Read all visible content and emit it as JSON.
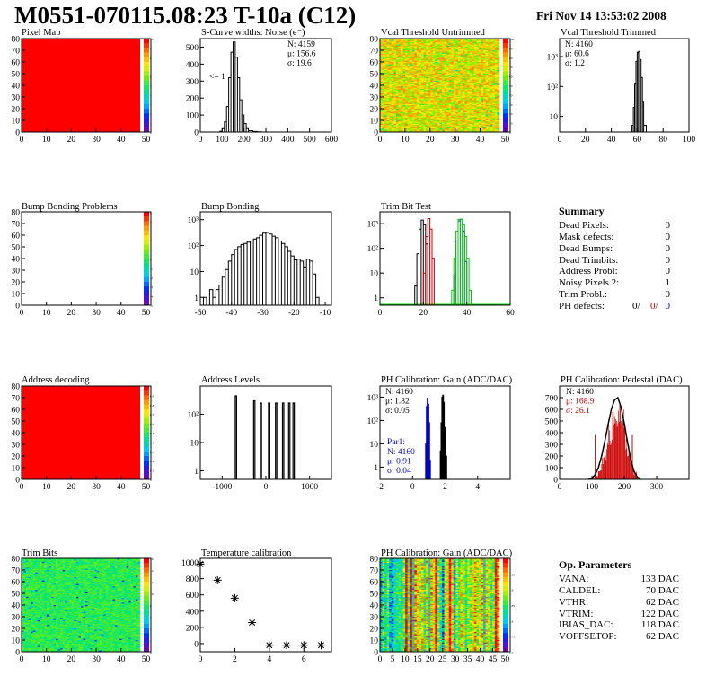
{
  "header": {
    "title": "M0551-070115.08:23 T-10a (C12)",
    "datetime": "Fri Nov 14 13:53:02 2008"
  },
  "colors": {
    "curve_black": "#000000",
    "curve_red": "#cc0000",
    "curve_green": "#00cc00",
    "curve_blue": "#0000cc",
    "heat_red": "#ff0000"
  },
  "chart_data": [
    {
      "id": "pixel-map",
      "type": "heatmap",
      "title": "Pixel Map",
      "xlim": [
        0,
        52
      ],
      "ylim": [
        0,
        80
      ],
      "xticks": [
        "0",
        "10",
        "20",
        "30",
        "40",
        "50"
      ],
      "yticks": [
        "0",
        "10",
        "20",
        "30",
        "40",
        "50",
        "60",
        "70",
        "80"
      ],
      "fill": "uniform",
      "value": 10,
      "zticks": [
        "0",
        "1",
        "2",
        "3",
        "4",
        "5",
        "6",
        "7",
        "8",
        "9",
        "10"
      ]
    },
    {
      "id": "scurve-widths",
      "type": "line",
      "title": "S-Curve widths: Noise (e⁻)",
      "xlim": [
        0,
        600
      ],
      "ylim": [
        0,
        550
      ],
      "log_y": false,
      "xticks": [
        "0",
        "100",
        "200",
        "300",
        "400",
        "500",
        "600"
      ],
      "yticks": [
        "0",
        "100",
        "200",
        "300",
        "400",
        "500"
      ],
      "stats": [
        "N: 4159",
        "μ: 156.6",
        "σ: 19.6"
      ],
      "annotation": "<= 1",
      "series": [
        {
          "color": "black",
          "x": [
            60,
            80,
            90,
            100,
            110,
            120,
            130,
            140,
            150,
            160,
            170,
            180,
            190,
            200,
            210,
            220,
            240,
            260,
            280,
            300
          ],
          "y": [
            0,
            0,
            5,
            20,
            60,
            150,
            320,
            470,
            530,
            440,
            320,
            190,
            100,
            50,
            20,
            8,
            3,
            1,
            0,
            0
          ]
        }
      ]
    },
    {
      "id": "vcal-untrimmed",
      "type": "heatmap",
      "title": "Vcal Threshold Untrimmed",
      "xlim": [
        0,
        52
      ],
      "ylim": [
        0,
        80
      ],
      "xticks": [
        "0",
        "10",
        "20",
        "30",
        "40",
        "50"
      ],
      "yticks": [
        "0",
        "10",
        "20",
        "30",
        "40",
        "50",
        "60",
        "70",
        "80"
      ],
      "fill": "noise",
      "value_range": [
        50,
        80
      ],
      "value_mean": 70,
      "zticks": [
        "0",
        "10",
        "20",
        "30",
        "40",
        "50",
        "60",
        "70",
        "80",
        "90",
        "100"
      ]
    },
    {
      "id": "vcal-trimmed",
      "type": "line",
      "title": "Vcal Threshold Trimmed",
      "xlim": [
        0,
        100
      ],
      "ylim": [
        3,
        4000
      ],
      "log_y": true,
      "xticks": [
        "0",
        "20",
        "40",
        "60",
        "80",
        "100"
      ],
      "yticks": [
        "10",
        "10²",
        "10³"
      ],
      "stats": [
        "N: 4160",
        "μ: 60.6",
        "σ:  1.2"
      ],
      "series": [
        {
          "color": "black",
          "x": [
            54,
            56,
            57,
            58,
            59,
            60,
            61,
            62,
            63,
            64,
            65,
            67
          ],
          "y": [
            3,
            5,
            20,
            120,
            700,
            1400,
            1500,
            800,
            200,
            30,
            5,
            3
          ]
        }
      ]
    },
    {
      "id": "bump-problems",
      "type": "heatmap",
      "title": "Bump Bonding Problems",
      "xlim": [
        0,
        52
      ],
      "ylim": [
        0,
        80
      ],
      "xticks": [
        "0",
        "10",
        "20",
        "30",
        "40",
        "50"
      ],
      "yticks": [
        "0",
        "10",
        "20",
        "30",
        "40",
        "50",
        "60",
        "70",
        "80"
      ],
      "fill": "empty",
      "zticks": [
        "-5",
        "-4",
        "-3",
        "-2",
        "-1",
        "0",
        "1",
        "2",
        "3",
        "4",
        "5"
      ]
    },
    {
      "id": "bump-bonding",
      "type": "line",
      "title": "Bump Bonding",
      "xlim": [
        -50,
        -8
      ],
      "ylim": [
        0.5,
        2000
      ],
      "log_y": true,
      "xticks": [
        "-50",
        "-40",
        "-30",
        "-20",
        "-10"
      ],
      "yticks": [
        "1",
        "10",
        "10²",
        "10³"
      ],
      "series": [
        {
          "color": "black",
          "x": [
            -49,
            -48,
            -47,
            -46,
            -45,
            -44,
            -43,
            -42,
            -41,
            -40,
            -39,
            -38,
            -37,
            -36,
            -35,
            -34,
            -33,
            -32,
            -31,
            -30,
            -29,
            -28,
            -27,
            -26,
            -25,
            -24,
            -23,
            -22,
            -21,
            -20,
            -19,
            -18,
            -17,
            -16,
            -15,
            -14,
            -13,
            -12
          ],
          "y": [
            1,
            0.5,
            2,
            1,
            2,
            3,
            6,
            12,
            25,
            45,
            70,
            90,
            110,
            120,
            135,
            150,
            180,
            200,
            250,
            300,
            320,
            280,
            230,
            200,
            150,
            120,
            90,
            60,
            40,
            28,
            30,
            25,
            15,
            30,
            25,
            8,
            1,
            0.5
          ]
        }
      ]
    },
    {
      "id": "trim-bit-test",
      "type": "line",
      "title": "Trim Bit Test",
      "xlim": [
        0,
        60
      ],
      "ylim": [
        0.5,
        3000
      ],
      "log_y": true,
      "xticks": [
        "0",
        "20",
        "40",
        "60"
      ],
      "yticks": [
        "1",
        "10",
        "10²",
        "10³"
      ],
      "baseline_color": "green",
      "series": [
        {
          "color": "black",
          "x": [
            15,
            16,
            17,
            18,
            19,
            20,
            21,
            22
          ],
          "y": [
            0.5,
            3,
            60,
            600,
            1400,
            900,
            150,
            0.5
          ]
        },
        {
          "color": "red",
          "x": [
            19,
            20,
            21,
            22,
            23,
            24,
            25
          ],
          "y": [
            0.5,
            10,
            300,
            1600,
            600,
            40,
            0.5
          ]
        },
        {
          "color": "blue",
          "x": [
            33,
            34,
            35,
            36,
            37,
            38,
            39,
            40
          ],
          "y": [
            0.5,
            8,
            200,
            1300,
            1500,
            500,
            30,
            0.5
          ]
        },
        {
          "color": "green",
          "x": [
            32,
            33,
            34,
            35,
            36,
            37,
            38,
            39,
            40,
            41,
            42
          ],
          "y": [
            0.5,
            2,
            40,
            500,
            1500,
            1500,
            900,
            300,
            40,
            2,
            0.5
          ]
        }
      ]
    },
    {
      "id": "address-decoding",
      "type": "heatmap",
      "title": "Address decoding",
      "xlim": [
        0,
        52
      ],
      "ylim": [
        0,
        80
      ],
      "xticks": [
        "0",
        "10",
        "20",
        "30",
        "40",
        "50"
      ],
      "yticks": [
        "0",
        "10",
        "20",
        "30",
        "40",
        "50",
        "60",
        "70",
        "80"
      ],
      "fill": "uniform",
      "value": 1,
      "zticks": [
        "0",
        "0.1",
        "0.2",
        "0.3",
        "0.4",
        "0.5",
        "0.6",
        "0.7",
        "0.8",
        "0.9",
        "1"
      ]
    },
    {
      "id": "address-levels",
      "type": "line",
      "title": "Address Levels",
      "xlim": [
        -1500,
        1500
      ],
      "ylim": [
        0.5,
        1000
      ],
      "log_y": true,
      "xticks": [
        "-1000",
        "0",
        "1000"
      ],
      "yticks": [
        "1",
        "10",
        "10²"
      ],
      "peaks": [
        -700,
        -280,
        -130,
        60,
        220,
        380,
        520,
        620
      ],
      "peak_heights": [
        450,
        300,
        250,
        250,
        250,
        250,
        250,
        250
      ]
    },
    {
      "id": "ph-gain",
      "type": "line",
      "title": "PH Calibration: Gain (ADC/DAC)",
      "xlim": [
        -2,
        6
      ],
      "ylim": [
        0.3,
        3000
      ],
      "log_y": true,
      "xticks": [
        "-2",
        "0",
        "2",
        "4"
      ],
      "yticks": [
        "1",
        "10",
        "10²",
        "10³"
      ],
      "stats": [
        "N: 4160",
        "μ: 1.82",
        "σ: 0.05"
      ],
      "stats2_title": "Par1:",
      "stats2": [
        "N: 4160",
        "μ: 0.91",
        "σ: 0.04"
      ],
      "series": [
        {
          "color": "black",
          "x": [
            1.6,
            1.7,
            1.75,
            1.8,
            1.85,
            1.9,
            1.95,
            2.0,
            2.1
          ],
          "y": [
            0.3,
            5,
            80,
            1000,
            1200,
            600,
            50,
            3,
            0.3
          ]
        },
        {
          "color": "blue",
          "x": [
            0.75,
            0.8,
            0.85,
            0.9,
            0.95,
            1.0,
            1.05,
            1.1
          ],
          "y": [
            0.3,
            10,
            400,
            900,
            500,
            80,
            2,
            0.3
          ]
        }
      ]
    },
    {
      "id": "ph-pedestal",
      "type": "line",
      "title": "PH Calibration: Pedestal (DAC)",
      "xlim": [
        0,
        400
      ],
      "ylim": [
        0,
        800
      ],
      "log_y": false,
      "xticks": [
        "0",
        "100",
        "200",
        "300"
      ],
      "yticks": [
        "0",
        "100",
        "200",
        "300",
        "400",
        "500",
        "600",
        "700"
      ],
      "stats": [
        "N: 4160",
        "μ: 168.9",
        "σ: 26.1"
      ],
      "series": [
        {
          "color": "black",
          "x": [
            90,
            100,
            110,
            120,
            130,
            140,
            150,
            160,
            170,
            180,
            190,
            200,
            210,
            220,
            230,
            240,
            250
          ],
          "y": [
            0,
            10,
            40,
            100,
            200,
            330,
            470,
            600,
            680,
            700,
            620,
            480,
            320,
            170,
            70,
            20,
            0
          ]
        }
      ]
    },
    {
      "id": "trim-bits",
      "type": "heatmap",
      "title": "Trim Bits",
      "xlim": [
        0,
        52
      ],
      "ylim": [
        0,
        80
      ],
      "xticks": [
        "0",
        "10",
        "20",
        "30",
        "40",
        "50"
      ],
      "yticks": [
        "0",
        "10",
        "20",
        "30",
        "40",
        "50",
        "60",
        "70",
        "80"
      ],
      "fill": "noise",
      "value_range": [
        7,
        10
      ],
      "value_mean": 8.5,
      "zticks": [
        "0",
        "2",
        "4",
        "6",
        "8",
        "10",
        "12",
        "14",
        "16"
      ]
    },
    {
      "id": "temperature-calibration",
      "type": "scatter",
      "title": "Temperature calibration",
      "xlim": [
        0,
        7.6
      ],
      "ylim": [
        -100,
        1050
      ],
      "xticks": [
        "0",
        "2",
        "4",
        "6"
      ],
      "yticks": [
        "0",
        "200",
        "400",
        "600",
        "800",
        "1000"
      ],
      "x": [
        0,
        1,
        2,
        3,
        4,
        5,
        6,
        7
      ],
      "y": [
        980,
        780,
        560,
        260,
        -20,
        -20,
        -20,
        -20
      ]
    },
    {
      "id": "ph-gain-map",
      "type": "heatmap",
      "title": "PH Calibration: Gain (ADC/DAC)",
      "xlim": [
        0,
        52
      ],
      "ylim": [
        0,
        80
      ],
      "xticks": [
        "0",
        "5",
        "10",
        "15",
        "20",
        "25",
        "30",
        "35",
        "40",
        "45",
        "50"
      ],
      "yticks": [
        "0",
        "10",
        "20",
        "30",
        "40",
        "50",
        "60",
        "70",
        "80"
      ],
      "fill": "columns",
      "value_range": [
        1.6,
        2.0
      ],
      "zticks": [
        "1.7",
        "1.75",
        "1.8",
        "1.85",
        "1.9",
        "1.95",
        "2"
      ]
    }
  ],
  "summary": {
    "title": "Summary",
    "rows": [
      {
        "label": "Dead Pixels:",
        "value": "0"
      },
      {
        "label": "Mask defects:",
        "value": "0"
      },
      {
        "label": "Dead Bumps:",
        "value": "0"
      },
      {
        "label": "Dead Trimbits:",
        "value": "0"
      },
      {
        "label": "Address Probl:",
        "value": "0"
      },
      {
        "label": "Noisy Pixels 2:",
        "value": "1"
      },
      {
        "label": "Trim Probl.:",
        "value": "0"
      }
    ],
    "ph_defects": {
      "label": "PH defects:",
      "black": "0/",
      "red": "0/",
      "blue": "0"
    }
  },
  "op_params": {
    "title": "Op. Parameters",
    "rows": [
      {
        "label": "VANA:",
        "value": "133 DAC"
      },
      {
        "label": "CALDEL:",
        "value": "70 DAC"
      },
      {
        "label": "VTHR:",
        "value": "62 DAC"
      },
      {
        "label": "VTRIM:",
        "value": "122 DAC"
      },
      {
        "label": "IBIAS_DAC:",
        "value": "118 DAC"
      },
      {
        "label": "VOFFSETOP:",
        "value": "62 DAC"
      }
    ]
  }
}
